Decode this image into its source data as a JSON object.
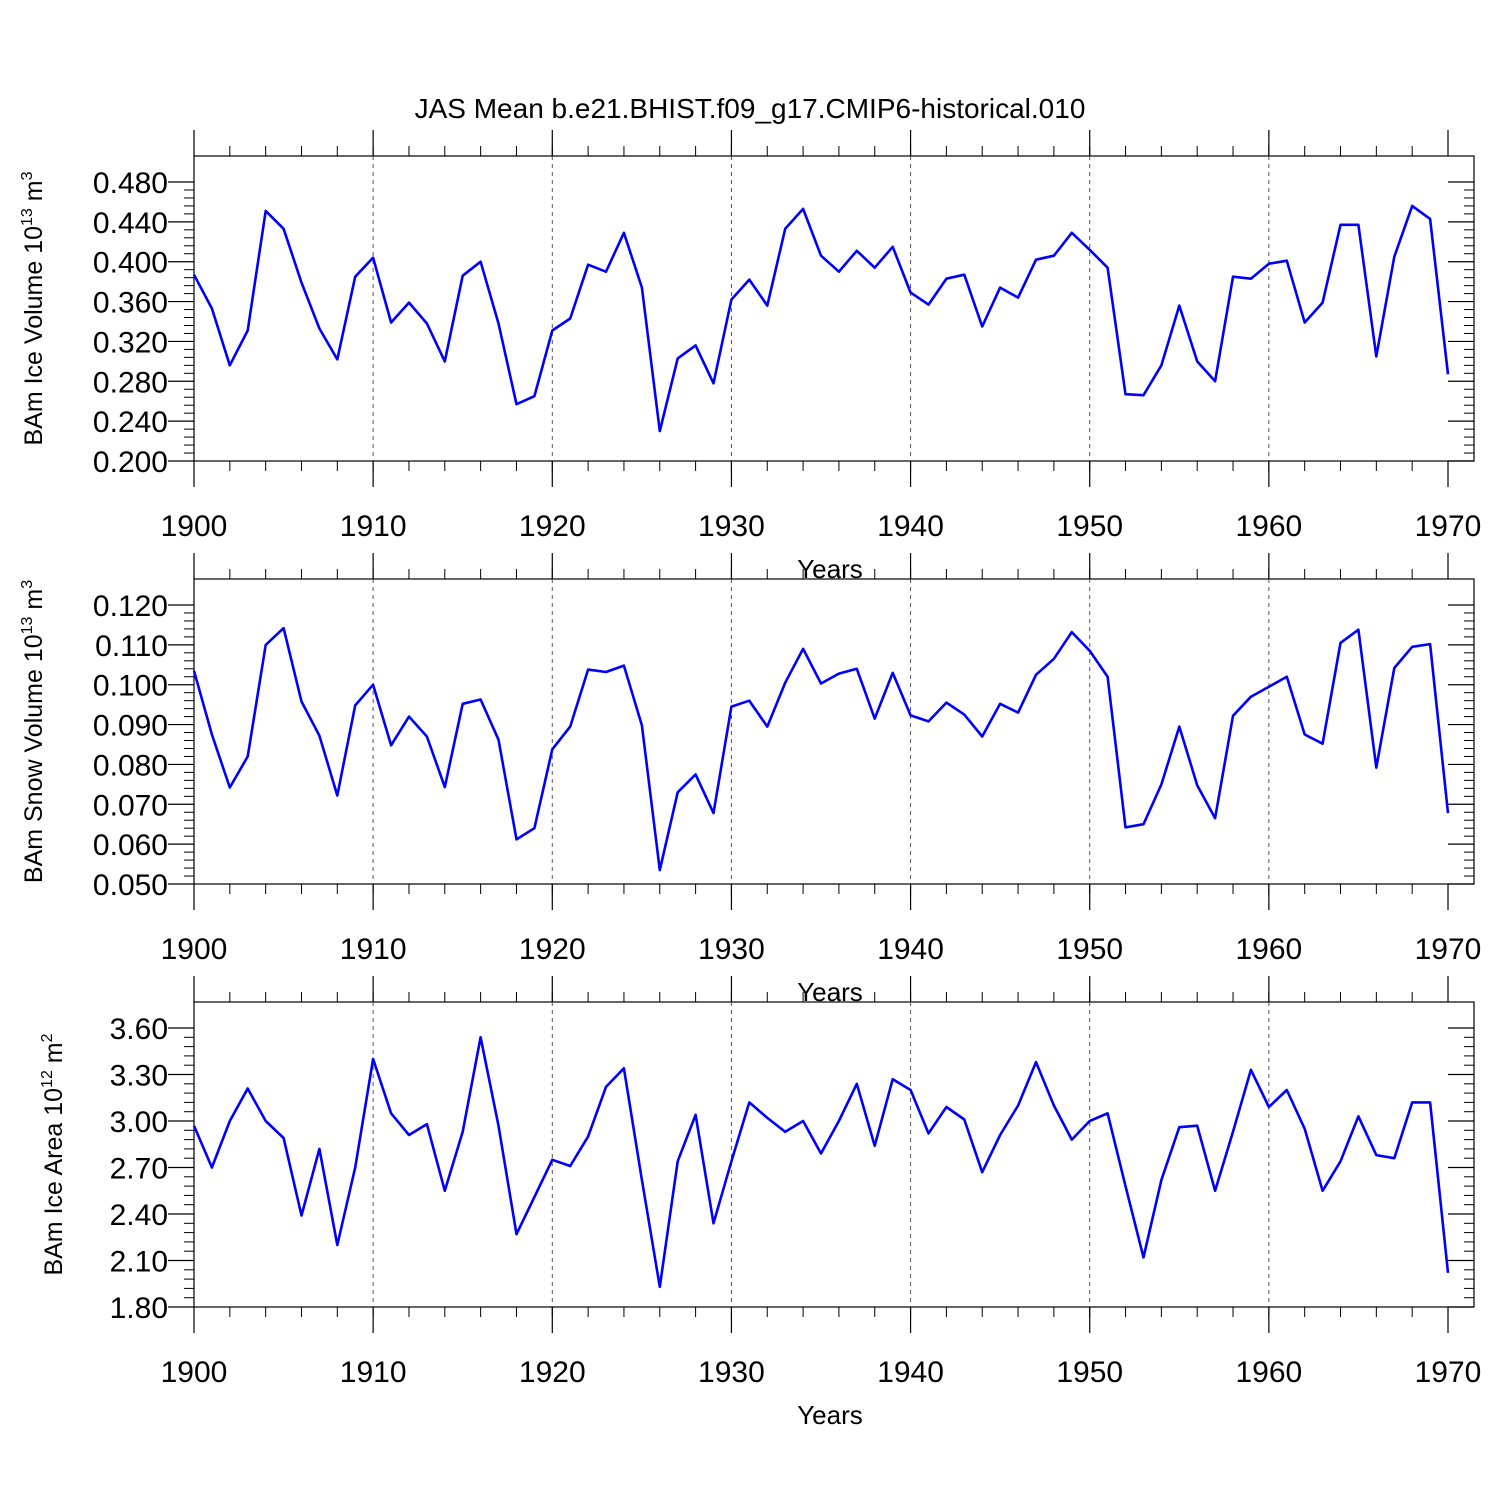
{
  "figure": {
    "title": "JAS Mean b.e21.BHIST.f09_g17.CMIP6-historical.010",
    "line_color": "#0000ff"
  },
  "chart_data": [
    {
      "type": "line",
      "ylabel_main": "BAm Ice Volume 10",
      "ylabel_exp": "13",
      "ylabel_unit": " m",
      "ylabel_unit_exp": "3",
      "xlabel": "Years",
      "xlim": [
        1900,
        1970
      ],
      "ylim": [
        0.2,
        0.48
      ],
      "xticks": [
        1900,
        1910,
        1920,
        1930,
        1940,
        1950,
        1960,
        1970
      ],
      "xtick_labels": [
        "1900",
        "1910",
        "1920",
        "1930",
        "1940",
        "1950",
        "1960",
        "1970"
      ],
      "yticks": [
        0.2,
        0.24,
        0.28,
        0.32,
        0.36,
        0.4,
        0.44,
        0.48
      ],
      "ytick_labels": [
        "0.200",
        "0.240",
        "0.280",
        "0.320",
        "0.360",
        "0.400",
        "0.440",
        "0.480"
      ],
      "grid": "vertical dashed at major x ticks",
      "series": [
        {
          "x_start": 1900,
          "values": [
            0.387,
            0.353,
            0.296,
            0.331,
            0.451,
            0.433,
            0.379,
            0.333,
            0.302,
            0.385,
            0.404,
            0.339,
            0.359,
            0.338,
            0.3,
            0.386,
            0.4,
            0.338,
            0.257,
            0.265,
            0.331,
            0.343,
            0.397,
            0.39,
            0.429,
            0.374,
            0.23,
            0.303,
            0.316,
            0.278,
            0.362,
            0.382,
            0.356,
            0.433,
            0.453,
            0.406,
            0.39,
            0.411,
            0.394,
            0.415,
            0.369,
            0.357,
            0.383,
            0.387,
            0.335,
            0.374,
            0.364,
            0.402,
            0.406,
            0.429,
            0.412,
            0.394,
            0.267,
            0.266,
            0.296,
            0.356,
            0.3,
            0.28,
            0.385,
            0.383,
            0.398,
            0.401,
            0.339,
            0.359,
            0.437,
            0.437,
            0.305,
            0.405,
            0.456,
            0.443,
            0.287
          ]
        }
      ]
    },
    {
      "type": "line",
      "ylabel_main": "BAm Snow Volume 10",
      "ylabel_exp": "13",
      "ylabel_unit": " m",
      "ylabel_unit_exp": "3",
      "xlabel": "Years",
      "xlim": [
        1900,
        1970
      ],
      "ylim": [
        0.05,
        0.12
      ],
      "xticks": [
        1900,
        1910,
        1920,
        1930,
        1940,
        1950,
        1960,
        1970
      ],
      "xtick_labels": [
        "1900",
        "1910",
        "1920",
        "1930",
        "1940",
        "1950",
        "1960",
        "1970"
      ],
      "yticks": [
        0.05,
        0.06,
        0.07,
        0.08,
        0.09,
        0.1,
        0.11,
        0.12
      ],
      "ytick_labels": [
        "0.050",
        "0.060",
        "0.070",
        "0.080",
        "0.090",
        "0.100",
        "0.110",
        "0.120"
      ],
      "grid": "vertical dashed at major x ticks",
      "series": [
        {
          "x_start": 1900,
          "values": [
            0.1035,
            0.0875,
            0.0742,
            0.082,
            0.11,
            0.1142,
            0.0958,
            0.0872,
            0.0722,
            0.0948,
            0.1,
            0.0848,
            0.092,
            0.087,
            0.0743,
            0.0952,
            0.0963,
            0.0862,
            0.0612,
            0.064,
            0.0838,
            0.0895,
            0.1038,
            0.1032,
            0.1048,
            0.0898,
            0.0535,
            0.073,
            0.0775,
            0.0678,
            0.0945,
            0.096,
            0.0895,
            0.1005,
            0.109,
            0.1003,
            0.1028,
            0.104,
            0.0915,
            0.103,
            0.0923,
            0.0908,
            0.0955,
            0.0925,
            0.087,
            0.0952,
            0.093,
            0.1025,
            0.1065,
            0.1132,
            0.1085,
            0.102,
            0.0642,
            0.065,
            0.075,
            0.0895,
            0.0748,
            0.0665,
            0.0922,
            0.097,
            0.0995,
            0.102,
            0.0875,
            0.0852,
            0.1105,
            0.1138,
            0.0792,
            0.1042,
            0.1095,
            0.1102,
            0.0678
          ]
        }
      ]
    },
    {
      "type": "line",
      "ylabel_main": "BAm Ice Area 10",
      "ylabel_exp": "12",
      "ylabel_unit": " m",
      "ylabel_unit_exp": "2",
      "xlabel": "Years",
      "xlim": [
        1900,
        1970
      ],
      "ylim": [
        1.8,
        3.6
      ],
      "xticks": [
        1900,
        1910,
        1920,
        1930,
        1940,
        1950,
        1960,
        1970
      ],
      "xtick_labels": [
        "1900",
        "1910",
        "1920",
        "1930",
        "1940",
        "1950",
        "1960",
        "1970"
      ],
      "yticks": [
        1.8,
        2.1,
        2.4,
        2.7,
        3.0,
        3.3,
        3.6
      ],
      "ytick_labels": [
        "1.80",
        "2.10",
        "2.40",
        "2.70",
        "3.00",
        "3.30",
        "3.60"
      ],
      "grid": "vertical dashed at major x ticks",
      "series": [
        {
          "x_start": 1900,
          "values": [
            2.97,
            2.7,
            3.0,
            3.21,
            3.0,
            2.89,
            2.39,
            2.82,
            2.2,
            2.7,
            3.4,
            3.05,
            2.91,
            2.98,
            2.55,
            2.93,
            3.54,
            2.97,
            2.27,
            2.51,
            2.75,
            2.71,
            2.9,
            3.22,
            3.34,
            2.62,
            1.93,
            2.74,
            3.04,
            2.34,
            2.74,
            3.12,
            3.02,
            2.93,
            3.0,
            2.79,
            3.0,
            3.24,
            2.84,
            3.27,
            3.2,
            2.92,
            3.09,
            3.01,
            2.67,
            2.91,
            3.1,
            3.38,
            3.1,
            2.88,
            3.0,
            3.05,
            2.58,
            2.12,
            2.62,
            2.96,
            2.97,
            2.55,
            2.93,
            3.33,
            3.09,
            3.2,
            2.95,
            2.55,
            2.74,
            3.03,
            2.78,
            2.76,
            3.12,
            3.12,
            2.02
          ]
        }
      ]
    }
  ]
}
